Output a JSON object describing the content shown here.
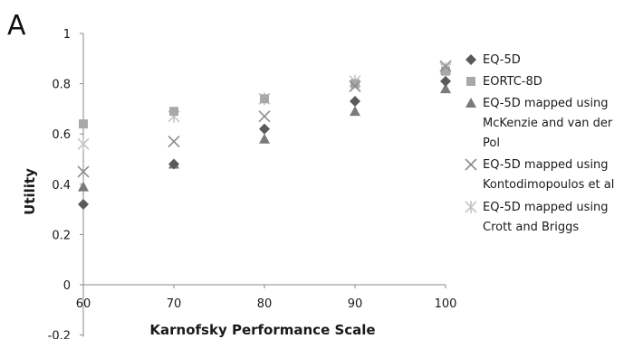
{
  "panel_label": "A",
  "chart_data": {
    "type": "scatter",
    "xlabel": "Karnofsky Performance Scale",
    "ylabel": "Utility",
    "x": [
      60,
      70,
      80,
      90,
      100
    ],
    "xlim": [
      60,
      100
    ],
    "ylim": [
      -0.2,
      1
    ],
    "x_ticks": [
      "60",
      "70",
      "80",
      "90",
      "100"
    ],
    "y_ticks": [
      "-0.2",
      "0",
      "0.2",
      "0.4",
      "0.6",
      "0.8",
      "1"
    ],
    "grid": false,
    "legend_position": "right",
    "series": [
      {
        "name": "EQ-5D",
        "marker": "diamond",
        "color": "#5a5a5a",
        "values": [
          0.32,
          0.48,
          0.62,
          0.73,
          0.81
        ]
      },
      {
        "name": "EORTC-8D",
        "marker": "square",
        "color": "#a8a8a8",
        "values": [
          0.64,
          0.69,
          0.74,
          0.8,
          0.85
        ]
      },
      {
        "name": "EQ-5D mapped using McKenzie and van der Pol",
        "marker": "triangle",
        "color": "#7a7a7a",
        "values": [
          0.39,
          0.48,
          0.58,
          0.69,
          0.78
        ]
      },
      {
        "name": "EQ-5D mapped using Kontodimopoulos et al",
        "marker": "x",
        "color": "#8c8c8c",
        "values": [
          0.45,
          0.57,
          0.67,
          0.79,
          0.87
        ]
      },
      {
        "name": "EQ-5D mapped using Crott and Briggs",
        "marker": "star",
        "color": "#c4c4c4",
        "values": [
          0.56,
          0.67,
          0.74,
          0.81,
          0.86
        ]
      }
    ],
    "legend_lines": [
      [
        "EQ-5D"
      ],
      [
        "EORTC-8D"
      ],
      [
        "EQ-5D mapped using",
        "McKenzie and van der",
        "Pol"
      ],
      [
        "EQ-5D mapped using",
        "Kontodimopoulos et al"
      ],
      [
        "EQ-5D mapped using",
        "Crott and Briggs"
      ]
    ]
  }
}
